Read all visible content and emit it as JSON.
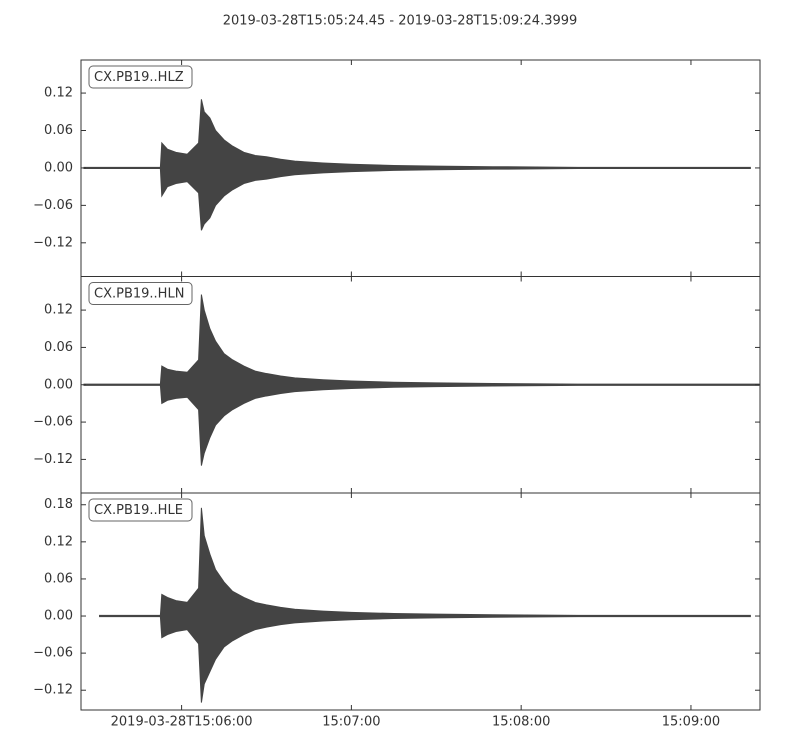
{
  "title": "2019-03-28T15:05:24.45  -  2019-03-28T15:09:24.3999",
  "chart_data": [
    {
      "type": "seismogram",
      "label": "CX.PB19..HLZ",
      "color": "#444444",
      "ylim": [
        -0.174,
        0.173
      ],
      "yticks": [
        0.12,
        0.06,
        {
          "value": 0,
          "label": "0.00"
        },
        {
          "value": -0.06,
          "label": "−0.06"
        },
        {
          "value": -0.12,
          "label": "−0.12"
        }
      ],
      "x": [
        25.5,
        52.5,
        53,
        55,
        58,
        62,
        66,
        67,
        68,
        70,
        72,
        75,
        78,
        82,
        86,
        90,
        95,
        100,
        110,
        120,
        135,
        150,
        170,
        200,
        261
      ],
      "upper": [
        0.001,
        0.001,
        0.04,
        0.03,
        0.025,
        0.022,
        0.04,
        0.11,
        0.09,
        0.08,
        0.06,
        0.045,
        0.035,
        0.025,
        0.02,
        0.018,
        0.014,
        0.011,
        0.008,
        0.006,
        0.004,
        0.003,
        0.002,
        0.001,
        0.001
      ],
      "lower": [
        -0.001,
        -0.001,
        -0.045,
        -0.03,
        -0.025,
        -0.022,
        -0.04,
        -0.1,
        -0.09,
        -0.08,
        -0.06,
        -0.045,
        -0.035,
        -0.025,
        -0.02,
        -0.018,
        -0.014,
        -0.011,
        -0.008,
        -0.006,
        -0.004,
        -0.003,
        -0.002,
        -0.001,
        -0.001
      ]
    },
    {
      "type": "seismogram",
      "label": "CX.PB19..HLN",
      "color": "#444444",
      "ylim": [
        -0.174,
        0.174
      ],
      "yticks": [
        0.12,
        0.06,
        {
          "value": 0,
          "label": "0.00"
        },
        {
          "value": -0.06,
          "label": "−0.06"
        },
        {
          "value": -0.12,
          "label": "−0.12"
        }
      ],
      "x": [
        25.5,
        52.5,
        53,
        55,
        58,
        62,
        66,
        67,
        68,
        70,
        72,
        75,
        78,
        82,
        86,
        90,
        95,
        100,
        110,
        120,
        135,
        150,
        170,
        200,
        264
      ],
      "upper": [
        0.001,
        0.001,
        0.03,
        0.025,
        0.022,
        0.02,
        0.04,
        0.145,
        0.12,
        0.09,
        0.07,
        0.05,
        0.04,
        0.03,
        0.022,
        0.018,
        0.014,
        0.011,
        0.008,
        0.006,
        0.004,
        0.003,
        0.002,
        0.001,
        0.001
      ],
      "lower": [
        -0.001,
        -0.001,
        -0.03,
        -0.025,
        -0.022,
        -0.02,
        -0.04,
        -0.13,
        -0.11,
        -0.085,
        -0.065,
        -0.05,
        -0.04,
        -0.03,
        -0.022,
        -0.018,
        -0.014,
        -0.011,
        -0.008,
        -0.006,
        -0.004,
        -0.003,
        -0.002,
        -0.001,
        -0.001
      ]
    },
    {
      "type": "seismogram",
      "label": "CX.PB19..HLE",
      "color": "#444444",
      "ylim": [
        -0.152,
        0.199
      ],
      "yticks": [
        0.18,
        0.12,
        0.06,
        {
          "value": 0,
          "label": "0.00"
        },
        {
          "value": -0.06,
          "label": "−0.06"
        },
        {
          "value": -0.12,
          "label": "−0.12"
        }
      ],
      "xlim": [
        24.45,
        264.4
      ],
      "xticks": [
        {
          "value": 60,
          "label": "2019-03-28T15:06:00"
        },
        {
          "value": 120,
          "label": "15:07:00"
        },
        {
          "value": 180,
          "label": "15:08:00"
        },
        {
          "value": 240,
          "label": "15:09:00"
        }
      ],
      "x": [
        31,
        52.5,
        53,
        55,
        58,
        62,
        66,
        67,
        68,
        70,
        72,
        75,
        78,
        82,
        86,
        90,
        95,
        100,
        110,
        120,
        135,
        150,
        170,
        200,
        261
      ],
      "upper": [
        0.001,
        0.001,
        0.035,
        0.03,
        0.025,
        0.022,
        0.045,
        0.175,
        0.13,
        0.1,
        0.075,
        0.055,
        0.04,
        0.03,
        0.022,
        0.018,
        0.014,
        0.011,
        0.008,
        0.006,
        0.004,
        0.003,
        0.002,
        0.001,
        0.001
      ],
      "lower": [
        -0.001,
        -0.001,
        -0.035,
        -0.03,
        -0.025,
        -0.022,
        -0.045,
        -0.14,
        -0.11,
        -0.09,
        -0.07,
        -0.05,
        -0.04,
        -0.03,
        -0.022,
        -0.018,
        -0.014,
        -0.011,
        -0.008,
        -0.006,
        -0.004,
        -0.003,
        -0.002,
        -0.001,
        -0.001
      ]
    }
  ]
}
